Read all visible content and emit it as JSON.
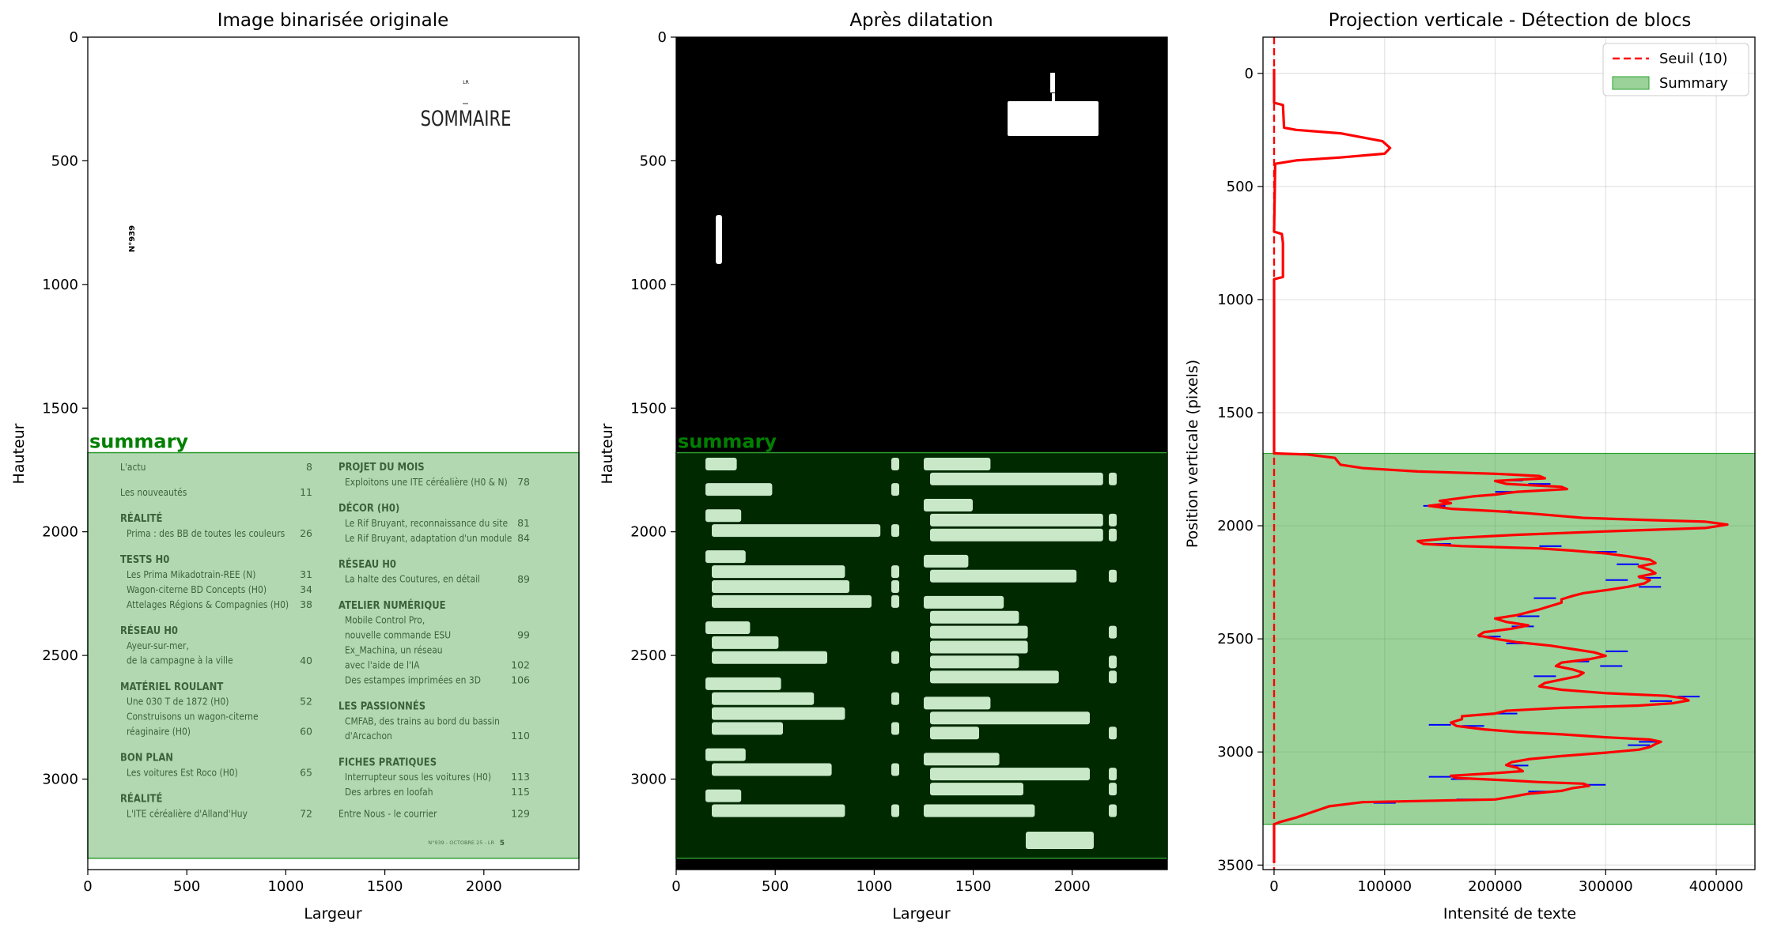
{
  "panels": {
    "p1": {
      "title": "Image binarisée originale",
      "xlabel": "Largeur",
      "ylabel": "Hauteur"
    },
    "p2": {
      "title": "Après dilatation",
      "xlabel": "Largeur",
      "ylabel": "Hauteur"
    },
    "p3": {
      "title": "Projection verticale - Détection de blocs",
      "xlabel": "Intensité de texte",
      "ylabel": "Position verticale (pixels)"
    }
  },
  "region_label": "summary",
  "document": {
    "header_small": "LR",
    "heading": "SOMMAIRE",
    "issue_side": "N°939",
    "footer": "N°939 - OCTOBRE 25 - LR",
    "footer_page": "5",
    "left_entries": [
      {
        "kind": "item",
        "text": "L'actu",
        "num": "8",
        "row": 0
      },
      {
        "kind": "item",
        "text": "Les nouveautés",
        "num": "11",
        "row": 1.7
      },
      {
        "kind": "head",
        "text": "RÉALITÉ",
        "num": "",
        "row": 3.45
      },
      {
        "kind": "item",
        "text": "Prima : des BB de toutes les couleurs",
        "num": "26",
        "indent": true,
        "row": 4.45
      },
      {
        "kind": "head",
        "text": "TESTS H0",
        "num": "",
        "row": 6.2
      },
      {
        "kind": "item",
        "text": "Les Prima Mikadotrain-REE (N)",
        "num": "31",
        "indent": true,
        "row": 7.2
      },
      {
        "kind": "item",
        "text": "Wagon-citerne BD Concepts (H0)",
        "num": "34",
        "indent": true,
        "row": 8.2
      },
      {
        "kind": "item",
        "text": "Attelages Régions & Compagnies (H0)",
        "num": "38",
        "indent": true,
        "row": 9.2
      },
      {
        "kind": "head",
        "text": "RÉSEAU H0",
        "num": "",
        "row": 10.95
      },
      {
        "kind": "item",
        "text": "Ayeur-sur-mer,",
        "num": "",
        "indent": true,
        "row": 11.95
      },
      {
        "kind": "item",
        "text": "de la campagne à la ville",
        "num": "40",
        "indent": true,
        "row": 12.95
      },
      {
        "kind": "head",
        "text": "MATÉRIEL ROULANT",
        "num": "",
        "row": 14.7
      },
      {
        "kind": "item",
        "text": "Une 030 T de 1872 (H0)",
        "num": "52",
        "indent": true,
        "row": 15.7
      },
      {
        "kind": "item",
        "text": "Construisons un wagon-citerne",
        "num": "",
        "indent": true,
        "row": 16.7
      },
      {
        "kind": "item",
        "text": "réaginaire (H0)",
        "num": "60",
        "indent": true,
        "row": 17.7
      },
      {
        "kind": "head",
        "text": "BON PLAN",
        "num": "",
        "row": 19.45
      },
      {
        "kind": "item",
        "text": "Les voitures Est Roco (H0)",
        "num": "65",
        "indent": true,
        "row": 20.45
      },
      {
        "kind": "head",
        "text": "RÉALITÉ",
        "num": "",
        "row": 22.2
      },
      {
        "kind": "item",
        "text": "L'ITE céréalière d'Alland'Huy",
        "num": "72",
        "indent": true,
        "row": 23.2
      }
    ],
    "right_entries": [
      {
        "kind": "head",
        "text": "PROJET DU MOIS",
        "num": "",
        "row": 0
      },
      {
        "kind": "item",
        "text": "Exploitons une ITE céréalière (H0 & N)",
        "num": "78",
        "indent": true,
        "row": 1
      },
      {
        "kind": "head",
        "text": "DÉCOR (H0)",
        "num": "",
        "row": 2.75
      },
      {
        "kind": "item",
        "text": "Le Rif Bruyant, reconnaissance du site",
        "num": "81",
        "indent": true,
        "row": 3.75
      },
      {
        "kind": "item",
        "text": "Le Rif Bruyant, adaptation d'un module",
        "num": "84",
        "indent": true,
        "row": 4.75
      },
      {
        "kind": "head",
        "text": "RÉSEAU H0",
        "num": "",
        "row": 6.5
      },
      {
        "kind": "item",
        "text": "La halte des Coutures, en détail",
        "num": "89",
        "indent": true,
        "row": 7.5
      },
      {
        "kind": "head",
        "text": "ATELIER NUMÉRIQUE",
        "num": "",
        "row": 9.25
      },
      {
        "kind": "item",
        "text": "Mobile Control Pro,",
        "num": "",
        "indent": true,
        "row": 10.25
      },
      {
        "kind": "item",
        "text": "nouvelle commande ESU",
        "num": "99",
        "indent": true,
        "row": 11.25
      },
      {
        "kind": "item",
        "text": "Ex_Machina, un réseau",
        "num": "",
        "indent": true,
        "row": 12.25
      },
      {
        "kind": "item",
        "text": "avec l'aide de l'IA",
        "num": "102",
        "indent": true,
        "row": 13.25
      },
      {
        "kind": "item",
        "text": "Des estampes imprimées en 3D",
        "num": "106",
        "indent": true,
        "row": 14.25
      },
      {
        "kind": "head",
        "text": "LES PASSIONNÉS",
        "num": "",
        "row": 16
      },
      {
        "kind": "item",
        "text": "CMFAB, des trains au bord du bassin",
        "num": "",
        "indent": true,
        "row": 17
      },
      {
        "kind": "item",
        "text": "d'Arcachon",
        "num": "110",
        "indent": true,
        "row": 18
      },
      {
        "kind": "head",
        "text": "FICHES PRATIQUES",
        "num": "",
        "row": 19.75
      },
      {
        "kind": "item",
        "text": "Interrupteur sous les voitures (H0)",
        "num": "113",
        "indent": true,
        "row": 20.75
      },
      {
        "kind": "item",
        "text": "Des arbres en loofah",
        "num": "115",
        "indent": true,
        "row": 21.75
      },
      {
        "kind": "item",
        "text": "Entre Nous - le courrier",
        "num": "129",
        "row": 23.2
      }
    ]
  },
  "chart_data": [
    {
      "type": "image",
      "title": "Image binarisée originale",
      "xlabel": "Largeur",
      "ylabel": "Hauteur",
      "xlim": [
        0,
        2480
      ],
      "ylim": [
        3366,
        0
      ],
      "xticks": [
        0,
        500,
        1000,
        1500,
        2000
      ],
      "yticks": [
        0,
        500,
        1000,
        1500,
        2000,
        2500,
        3000
      ],
      "regions": [
        {
          "label": "summary",
          "y_start": 1680,
          "y_end": 3320,
          "color": "#008000"
        }
      ]
    },
    {
      "type": "image",
      "title": "Après dilatation",
      "xlabel": "Largeur",
      "ylabel": "Hauteur",
      "xlim": [
        0,
        2480
      ],
      "ylim": [
        3366,
        0
      ],
      "xticks": [
        0,
        500,
        1000,
        1500,
        2000
      ],
      "yticks": [
        0,
        500,
        1000,
        1500,
        2000,
        2500,
        3000
      ],
      "regions": [
        {
          "label": "summary",
          "y_start": 1680,
          "y_end": 3320,
          "color": "#008000"
        }
      ]
    },
    {
      "type": "line",
      "title": "Projection verticale - Détection de blocs",
      "xlabel": "Intensité de texte",
      "ylabel": "Position verticale (pixels)",
      "xlim": [
        -10000,
        435000
      ],
      "ylim": [
        3520,
        -160
      ],
      "xticks": [
        0,
        100000,
        200000,
        300000,
        400000
      ],
      "yticks": [
        0,
        500,
        1000,
        1500,
        2000,
        2500,
        3000,
        3500
      ],
      "grid": true,
      "legend": "upper right",
      "threshold": {
        "name": "Seuil (10)",
        "value": 10,
        "color": "#ff0000"
      },
      "blocks": [
        {
          "name": "Summary",
          "y_start": 1680,
          "y_end": 3320,
          "color": "#2ca02c"
        }
      ],
      "profile": {
        "color": "#ff0000",
        "points": [
          [
            0,
            -20
          ],
          [
            0,
            130
          ],
          [
            8000,
            140
          ],
          [
            9000,
            240
          ],
          [
            20000,
            250
          ],
          [
            60000,
            265
          ],
          [
            98000,
            300
          ],
          [
            105000,
            330
          ],
          [
            100000,
            355
          ],
          [
            60000,
            372
          ],
          [
            20000,
            385
          ],
          [
            1000,
            400
          ],
          [
            0,
            700
          ],
          [
            7000,
            710
          ],
          [
            8000,
            750
          ],
          [
            8000,
            900
          ],
          [
            0,
            910
          ],
          [
            0,
            1680
          ],
          [
            30000,
            1685
          ],
          [
            55000,
            1700
          ],
          [
            60000,
            1730
          ],
          [
            80000,
            1745
          ],
          [
            130000,
            1760
          ],
          [
            200000,
            1770
          ],
          [
            240000,
            1780
          ],
          [
            245000,
            1790
          ],
          [
            200000,
            1802
          ],
          [
            210000,
            1815
          ],
          [
            260000,
            1828
          ],
          [
            265000,
            1838
          ],
          [
            220000,
            1850
          ],
          [
            200000,
            1862
          ],
          [
            180000,
            1870
          ],
          [
            150000,
            1890
          ],
          [
            160000,
            1900
          ],
          [
            140000,
            1912
          ],
          [
            160000,
            1925
          ],
          [
            200000,
            1935
          ],
          [
            230000,
            1945
          ],
          [
            280000,
            1965
          ],
          [
            340000,
            1975
          ],
          [
            390000,
            1982
          ],
          [
            410000,
            1995
          ],
          [
            390000,
            2010
          ],
          [
            300000,
            2025
          ],
          [
            220000,
            2040
          ],
          [
            160000,
            2055
          ],
          [
            130000,
            2068
          ],
          [
            135000,
            2080
          ],
          [
            170000,
            2090
          ],
          [
            240000,
            2100
          ],
          [
            270000,
            2110
          ],
          [
            300000,
            2122
          ],
          [
            320000,
            2135
          ],
          [
            340000,
            2150
          ],
          [
            345000,
            2165
          ],
          [
            330000,
            2180
          ],
          [
            340000,
            2195
          ],
          [
            345000,
            2210
          ],
          [
            330000,
            2225
          ],
          [
            340000,
            2240
          ],
          [
            335000,
            2255
          ],
          [
            320000,
            2270
          ],
          [
            300000,
            2285
          ],
          [
            280000,
            2298
          ],
          [
            270000,
            2310
          ],
          [
            260000,
            2325
          ],
          [
            260000,
            2340
          ],
          [
            250000,
            2355
          ],
          [
            240000,
            2370
          ],
          [
            230000,
            2382
          ],
          [
            220000,
            2395
          ],
          [
            200000,
            2410
          ],
          [
            210000,
            2425
          ],
          [
            230000,
            2440
          ],
          [
            215000,
            2455
          ],
          [
            190000,
            2470
          ],
          [
            185000,
            2485
          ],
          [
            200000,
            2500
          ],
          [
            220000,
            2515
          ],
          [
            250000,
            2530
          ],
          [
            270000,
            2545
          ],
          [
            290000,
            2560
          ],
          [
            300000,
            2575
          ],
          [
            285000,
            2590
          ],
          [
            260000,
            2605
          ],
          [
            255000,
            2620
          ],
          [
            270000,
            2635
          ],
          [
            280000,
            2650
          ],
          [
            275000,
            2665
          ],
          [
            260000,
            2680
          ],
          [
            245000,
            2695
          ],
          [
            240000,
            2710
          ],
          [
            260000,
            2725
          ],
          [
            300000,
            2740
          ],
          [
            355000,
            2752
          ],
          [
            370000,
            2762
          ],
          [
            375000,
            2772
          ],
          [
            360000,
            2785
          ],
          [
            330000,
            2795
          ],
          [
            260000,
            2805
          ],
          [
            210000,
            2818
          ],
          [
            200000,
            2830
          ],
          [
            170000,
            2842
          ],
          [
            170000,
            2855
          ],
          [
            160000,
            2870
          ],
          [
            165000,
            2885
          ],
          [
            190000,
            2900
          ],
          [
            220000,
            2912
          ],
          [
            260000,
            2922
          ],
          [
            300000,
            2935
          ],
          [
            340000,
            2945
          ],
          [
            350000,
            2955
          ],
          [
            345000,
            2965
          ],
          [
            340000,
            2978
          ],
          [
            330000,
            2990
          ],
          [
            300000,
            3003
          ],
          [
            260000,
            3018
          ],
          [
            230000,
            3032
          ],
          [
            215000,
            3045
          ],
          [
            210000,
            3058
          ],
          [
            220000,
            3070
          ],
          [
            225000,
            3085
          ],
          [
            195000,
            3095
          ],
          [
            160000,
            3105
          ],
          [
            165000,
            3115
          ],
          [
            210000,
            3125
          ],
          [
            240000,
            3133
          ],
          [
            280000,
            3140
          ],
          [
            285000,
            3150
          ],
          [
            270000,
            3160
          ],
          [
            260000,
            3172
          ],
          [
            230000,
            3185
          ],
          [
            215000,
            3198
          ],
          [
            200000,
            3210
          ],
          [
            150000,
            3215
          ],
          [
            80000,
            3222
          ],
          [
            50000,
            3240
          ],
          [
            35000,
            3265
          ],
          [
            20000,
            3290
          ],
          [
            5000,
            3310
          ],
          [
            0,
            3320
          ],
          [
            0,
            3490
          ]
        ]
      },
      "markers": {
        "color": "#0000ff",
        "points": [
          [
            215000,
            1800
          ],
          [
            240000,
            1815
          ],
          [
            210000,
            1850
          ],
          [
            145000,
            1912
          ],
          [
            205000,
            1935
          ],
          [
            150000,
            2080
          ],
          [
            250000,
            2090
          ],
          [
            300000,
            2115
          ],
          [
            320000,
            2170
          ],
          [
            340000,
            2230
          ],
          [
            310000,
            2240
          ],
          [
            340000,
            2270
          ],
          [
            245000,
            2320
          ],
          [
            230000,
            2400
          ],
          [
            225000,
            2445
          ],
          [
            195000,
            2490
          ],
          [
            220000,
            2520
          ],
          [
            310000,
            2555
          ],
          [
            275000,
            2600
          ],
          [
            305000,
            2620
          ],
          [
            245000,
            2665
          ],
          [
            375000,
            2755
          ],
          [
            350000,
            2775
          ],
          [
            210000,
            2830
          ],
          [
            150000,
            2880
          ],
          [
            180000,
            2885
          ],
          [
            330000,
            2970
          ],
          [
            340000,
            2955
          ],
          [
            220000,
            3060
          ],
          [
            150000,
            3110
          ],
          [
            170000,
            3120
          ],
          [
            290000,
            3145
          ],
          [
            240000,
            3175
          ],
          [
            175000,
            3210
          ],
          [
            100000,
            3225
          ]
        ]
      }
    }
  ]
}
